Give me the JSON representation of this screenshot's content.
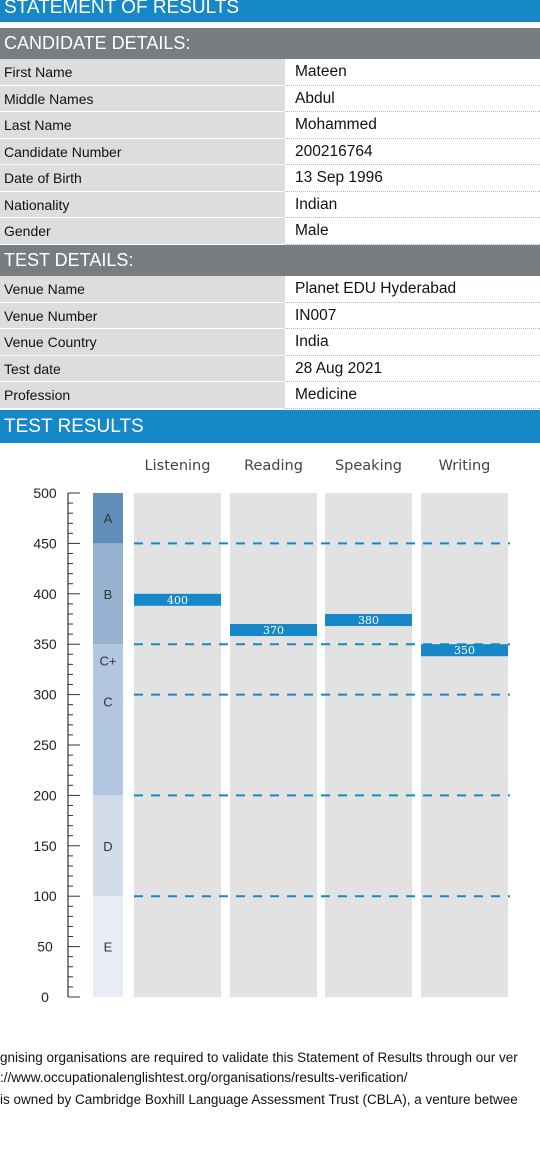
{
  "header": {
    "title": "STATEMENT OF RESULTS"
  },
  "candidate": {
    "heading": "CANDIDATE DETAILS:",
    "rows": [
      {
        "label": "First Name",
        "value": "Mateen"
      },
      {
        "label": "Middle Names",
        "value": "Abdul"
      },
      {
        "label": "Last Name",
        "value": "Mohammed"
      },
      {
        "label": "Candidate Number",
        "value": "200216764"
      },
      {
        "label": "Date of Birth",
        "value": "13 Sep 1996"
      },
      {
        "label": "Nationality",
        "value": "Indian"
      },
      {
        "label": "Gender",
        "value": "Male"
      }
    ]
  },
  "test": {
    "heading": "TEST DETAILS:",
    "rows": [
      {
        "label": "Venue Name",
        "value": "Planet EDU Hyderabad"
      },
      {
        "label": "Venue Number",
        "value": "IN007"
      },
      {
        "label": "Venue Country",
        "value": "India"
      },
      {
        "label": "Test date",
        "value": "28 Aug 2021"
      },
      {
        "label": "Profession",
        "value": "Medicine"
      }
    ]
  },
  "results": {
    "heading": "TEST RESULTS"
  },
  "chart_data": {
    "type": "bar",
    "categories": [
      "Listening",
      "Reading",
      "Speaking",
      "Writing"
    ],
    "values": [
      400,
      370,
      380,
      350
    ],
    "ylim": [
      0,
      500
    ],
    "yticks": [
      0,
      50,
      100,
      150,
      200,
      250,
      300,
      350,
      400,
      450,
      500
    ],
    "grade_bands": [
      {
        "grade": "A",
        "from": 450,
        "to": 500,
        "color": "#5f8fb8"
      },
      {
        "grade": "B",
        "from": 350,
        "to": 450,
        "color": "#98b3d2"
      },
      {
        "grade": "C+",
        "from": 300,
        "to": 350,
        "color": "#b2c6df"
      },
      {
        "grade": "C",
        "from": 200,
        "to": 300,
        "color": "#b2c6df"
      },
      {
        "grade": "D",
        "from": 100,
        "to": 200,
        "color": "#d2dcea"
      },
      {
        "grade": "E",
        "from": 0,
        "to": 100,
        "color": "#e9edf5"
      }
    ],
    "threshold_lines": [
      450,
      350,
      300,
      200,
      100
    ],
    "colors": {
      "score_bar": "#1788c7",
      "column_bg": "#e3e2e3",
      "dashed_line": "#1788c7"
    }
  },
  "footer": {
    "line1": "gnising organisations are required to validate this Statement of Results through our ver",
    "line2": "://www.occupationalenglishtest.org/organisations/results-verification/",
    "line3": "is owned by Cambridge Boxhill Language Assessment Trust (CBLA), a venture betwee"
  }
}
